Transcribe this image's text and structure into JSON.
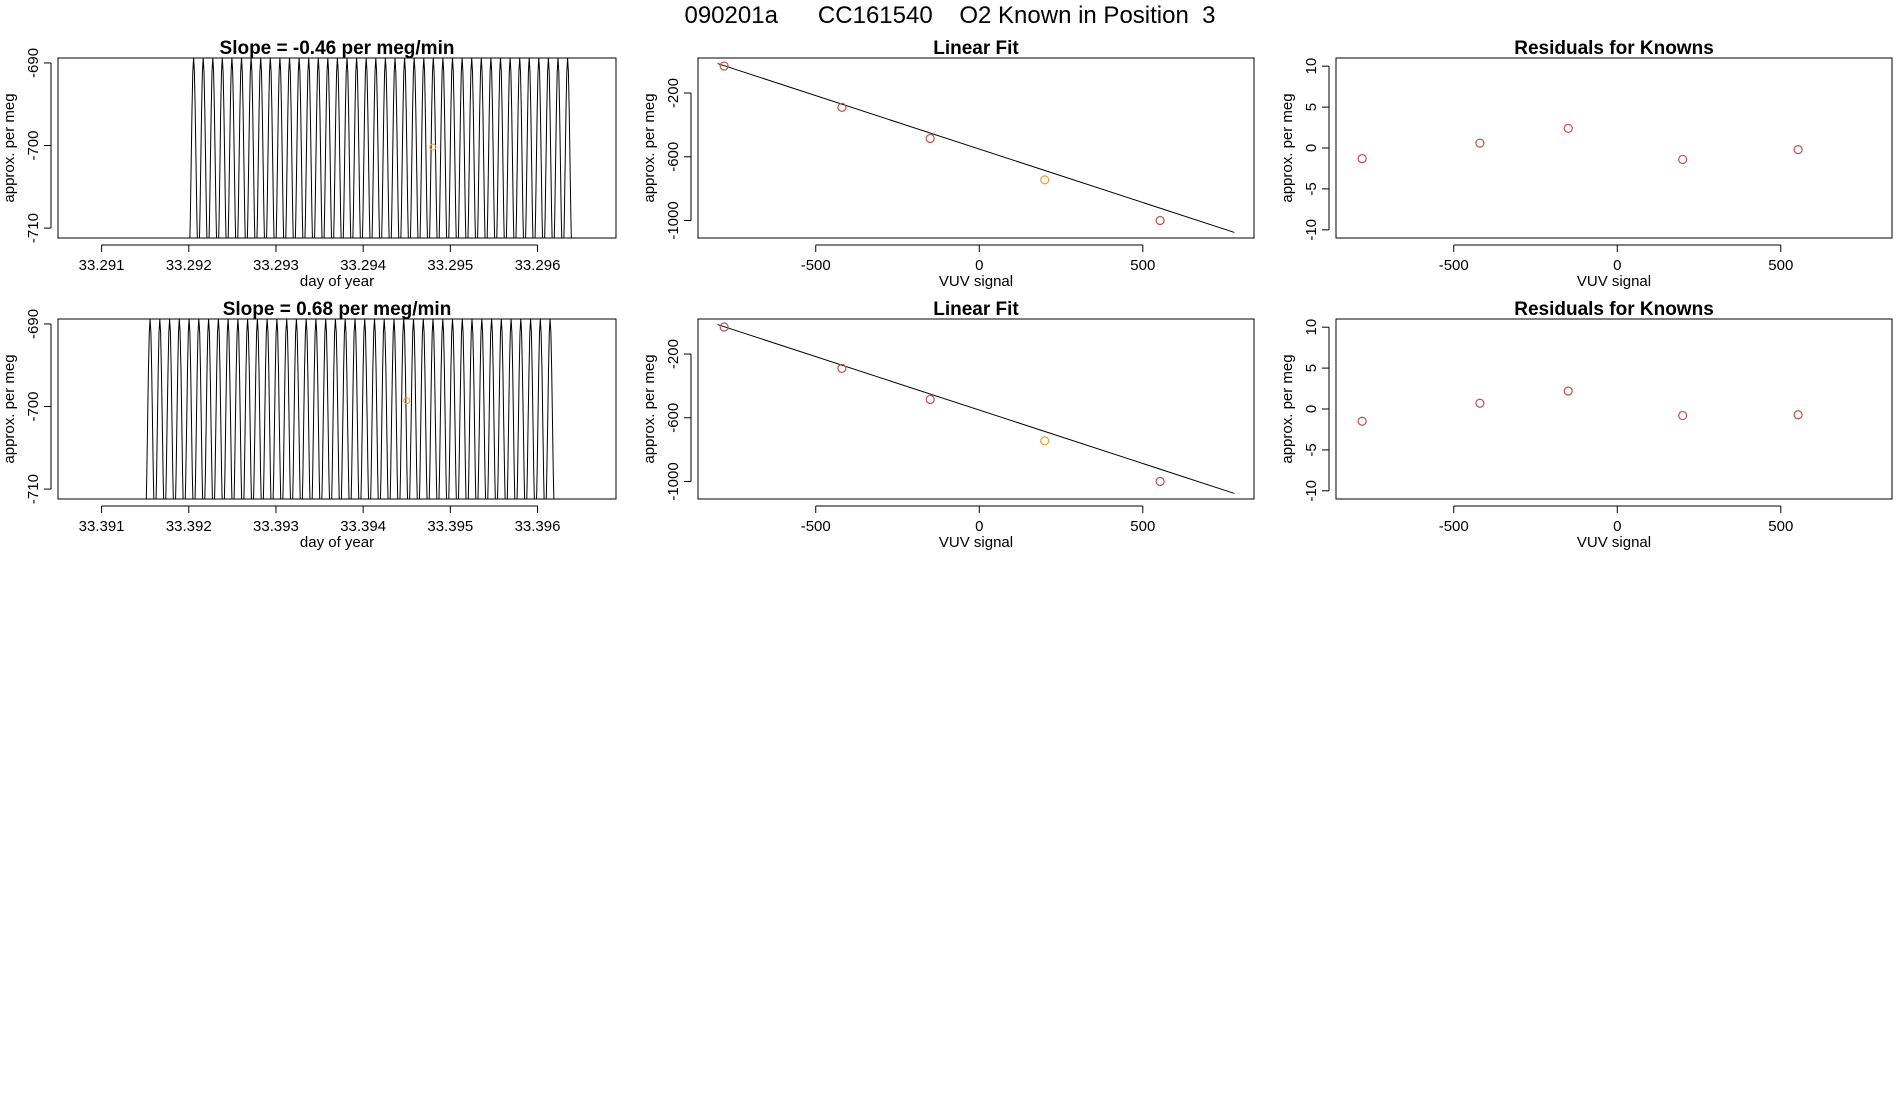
{
  "page": {
    "title": "090201a      CC161540    O2 Known in Position  3"
  },
  "colors": {
    "line": "#000000",
    "point": "#c0504d",
    "highlight": "#e8a030"
  },
  "chart_data": [
    {
      "type": "line",
      "title": "Slope =  -0.46  per meg/min",
      "xlabel": "day of year",
      "ylabel": "approx. per meg",
      "xlim": [
        33.2905,
        33.2969
      ],
      "ylim": [
        -711.2,
        -689.4
      ],
      "xticks": [
        33.291,
        33.292,
        33.293,
        33.294,
        33.295,
        33.296
      ],
      "xtick_labels": [
        "33.291",
        "33.292",
        "33.293",
        "33.294",
        "33.295",
        "33.296"
      ],
      "yticks": [
        -710,
        -700,
        -690
      ],
      "ytick_labels": [
        "-710",
        "-700",
        "-690"
      ],
      "grid": false,
      "series_line": {
        "x_start": 33.2905,
        "x_end": 33.2964,
        "flat_until": 33.292,
        "flat_value": -711.2,
        "cycles": 40,
        "low": -711.2,
        "high": -689.4
      },
      "highlight_point": {
        "x": 33.2948,
        "y": -700.2
      }
    },
    {
      "type": "scatter",
      "title": "Linear Fit",
      "xlabel": "VUV signal",
      "ylabel": "approx. per meg",
      "xlim": [
        -860,
        840
      ],
      "ylim": [
        -1110,
        20
      ],
      "xticks": [
        -500,
        0,
        500
      ],
      "xtick_labels": [
        "-500",
        "0",
        "500"
      ],
      "yticks": [
        -1000,
        -600,
        -200
      ],
      "ytick_labels": [
        "-1000",
        "-600",
        "-200"
      ],
      "grid": false,
      "points": [
        {
          "x": -780,
          "y": -30
        },
        {
          "x": -420,
          "y": -290
        },
        {
          "x": -150,
          "y": -485
        },
        {
          "x": 200,
          "y": -745
        },
        {
          "x": 553,
          "y": -1000
        }
      ],
      "highlight_index": 3,
      "fit_line": [
        {
          "x": -800,
          "y": -15
        },
        {
          "x": 780,
          "y": -1075
        }
      ]
    },
    {
      "type": "scatter",
      "title": "Residuals for Knowns",
      "xlabel": "VUV signal",
      "ylabel": "approx. per meg",
      "xlim": [
        -860,
        840
      ],
      "ylim": [
        -11,
        11
      ],
      "xticks": [
        -500,
        0,
        500
      ],
      "xtick_labels": [
        "-500",
        "0",
        "500"
      ],
      "yticks": [
        -10,
        -5,
        0,
        5,
        10
      ],
      "ytick_labels": [
        "-10",
        "-5",
        "0",
        "5",
        "10"
      ],
      "grid": false,
      "points": [
        {
          "x": -780,
          "y": -1.3
        },
        {
          "x": -420,
          "y": 0.6
        },
        {
          "x": -150,
          "y": 2.4
        },
        {
          "x": 200,
          "y": -1.4
        },
        {
          "x": 553,
          "y": -0.2
        }
      ],
      "highlight_index": -1
    },
    {
      "type": "line",
      "title": "Slope =  0.68  per meg/min",
      "xlabel": "day of year",
      "ylabel": "approx. per meg",
      "xlim": [
        33.3905,
        33.3969
      ],
      "ylim": [
        -711.2,
        -689.4
      ],
      "xticks": [
        33.391,
        33.392,
        33.393,
        33.394,
        33.395,
        33.396
      ],
      "xtick_labels": [
        "33.391",
        "33.392",
        "33.393",
        "33.394",
        "33.395",
        "33.396"
      ],
      "yticks": [
        -710,
        -700,
        -690
      ],
      "ytick_labels": [
        "-710",
        "-700",
        "-690"
      ],
      "grid": false,
      "series_line": {
        "x_start": 33.3905,
        "x_end": 33.3962,
        "flat_until": 33.3915,
        "flat_value": -711.2,
        "cycles": 42,
        "low": -711.2,
        "high": -689.4
      },
      "highlight_point": {
        "x": 33.3945,
        "y": -699.3
      }
    },
    {
      "type": "scatter",
      "title": "Linear Fit",
      "xlabel": "VUV signal",
      "ylabel": "approx. per meg",
      "xlim": [
        -860,
        840
      ],
      "ylim": [
        -1110,
        20
      ],
      "xticks": [
        -500,
        0,
        500
      ],
      "xtick_labels": [
        "-500",
        "0",
        "500"
      ],
      "yticks": [
        -1000,
        -600,
        -200
      ],
      "ytick_labels": [
        "-1000",
        "-600",
        "-200"
      ],
      "grid": false,
      "points": [
        {
          "x": -780,
          "y": -30
        },
        {
          "x": -420,
          "y": -290
        },
        {
          "x": -150,
          "y": -485
        },
        {
          "x": 200,
          "y": -745
        },
        {
          "x": 553,
          "y": -1000
        }
      ],
      "highlight_index": 3,
      "fit_line": [
        {
          "x": -800,
          "y": -15
        },
        {
          "x": 780,
          "y": -1075
        }
      ]
    },
    {
      "type": "scatter",
      "title": "Residuals for Knowns",
      "xlabel": "VUV signal",
      "ylabel": "approx. per meg",
      "xlim": [
        -860,
        840
      ],
      "ylim": [
        -11,
        11
      ],
      "xticks": [
        -500,
        0,
        500
      ],
      "xtick_labels": [
        "-500",
        "0",
        "500"
      ],
      "yticks": [
        -10,
        -5,
        0,
        5,
        10
      ],
      "ytick_labels": [
        "-10",
        "-5",
        "0",
        "5",
        "10"
      ],
      "grid": false,
      "points": [
        {
          "x": -780,
          "y": -1.5
        },
        {
          "x": -420,
          "y": 0.7
        },
        {
          "x": -150,
          "y": 2.2
        },
        {
          "x": 200,
          "y": -0.8
        },
        {
          "x": 553,
          "y": -0.7
        }
      ],
      "highlight_index": -1
    }
  ]
}
